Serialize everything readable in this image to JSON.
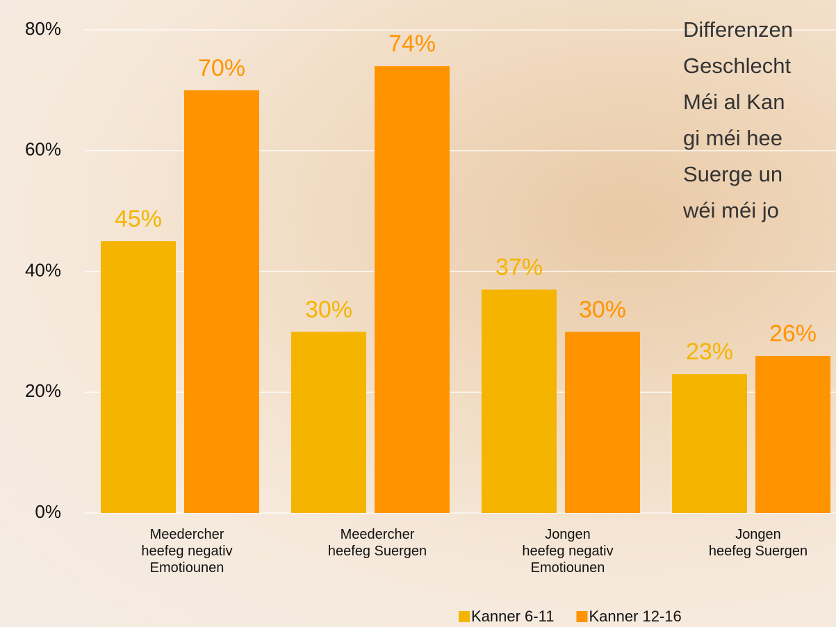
{
  "chart_data": {
    "type": "bar",
    "categories": [
      "Meedercher\nheefeg negativ\nEmotiounen",
      "Meedercher\nheefeg Suergen",
      "Jongen\nheefeg negativ\nEmotiounen",
      "Jongen\nheefeg Suergen"
    ],
    "series": [
      {
        "name": "Kanner 6-11",
        "color": "#f5b400",
        "values": [
          45,
          30,
          37,
          23
        ],
        "value_labels": [
          "45%",
          "30%",
          "37%",
          "23%"
        ]
      },
      {
        "name": "Kanner 12-16",
        "color": "#ff9400",
        "values": [
          70,
          74,
          30,
          26
        ],
        "value_labels": [
          "70%",
          "74%",
          "30%",
          "26%"
        ]
      }
    ],
    "ylim": [
      0,
      80
    ],
    "yticks": [
      {
        "value": 0,
        "label": "0%"
      },
      {
        "value": 20,
        "label": "20%"
      },
      {
        "value": 40,
        "label": "40%"
      },
      {
        "value": 60,
        "label": "60%"
      },
      {
        "value": 80,
        "label": "80%"
      }
    ],
    "grid": true,
    "legend": "bottom",
    "annotation": [
      "Differenzen",
      "Geschlecht",
      "Méi al Kan",
      "gi méi hee",
      "Suerge un",
      "wéi méi jo"
    ]
  }
}
